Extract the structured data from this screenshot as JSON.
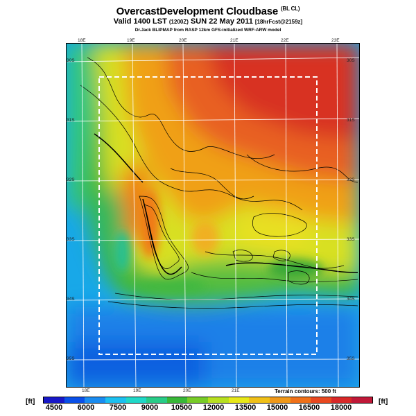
{
  "title": {
    "main": "OvercastDevelopment Cloudbase",
    "main_suffix": "(BL CL)",
    "valid": "Valid 1400 LST",
    "valid_z": "(1200Z)",
    "valid_date": "SUN 22 May 2011",
    "forecast": "[18hrFcst@2159z]",
    "credit": "Dr.Jack BLIPMAP from RASP 12km GFS-initialized WRF-ARW model"
  },
  "map": {
    "top_lon_labels": [
      "18E",
      "19E",
      "20E",
      "21E",
      "22E",
      "23E"
    ],
    "bottom_lon_labels": [
      "18E",
      "19E",
      "20E",
      "21E"
    ],
    "left_lat_labels": [
      "30S",
      "31S",
      "32S",
      "33S",
      "34S",
      "35S"
    ],
    "right_lat_labels": [
      "30S",
      "31S",
      "32S",
      "33S",
      "34S",
      "35S"
    ],
    "terrain_note": "Terrain contours: 500 ft"
  },
  "legend": {
    "unit_left": "[ft]",
    "unit_right": "[ft]",
    "ticks": [
      "4500",
      "6000",
      "7500",
      "9000",
      "10500",
      "12000",
      "13500",
      "15000",
      "16500",
      "18000"
    ],
    "colors": [
      "#1818c8",
      "#0a50e8",
      "#1a8cf0",
      "#1cc0f0",
      "#20d8c8",
      "#28cc88",
      "#38b838",
      "#78cc28",
      "#b8e020",
      "#e8e818",
      "#f0c018",
      "#f09818",
      "#f07018",
      "#e84820",
      "#d82828",
      "#c01838"
    ]
  }
}
